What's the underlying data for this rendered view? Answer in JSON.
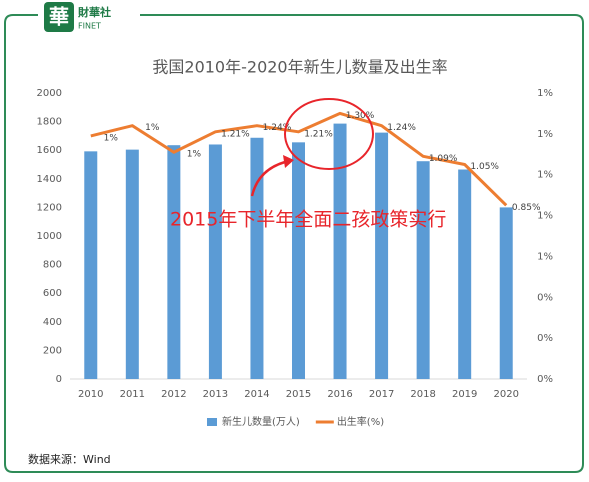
{
  "logo": {
    "icon": "華",
    "name": "財華社",
    "sub": "FINET"
  },
  "chart_data": {
    "type": "combo",
    "title": "我国2010年-2020年新生儿数量及出生率",
    "categories": [
      "2010",
      "2011",
      "2012",
      "2013",
      "2014",
      "2015",
      "2016",
      "2017",
      "2018",
      "2019",
      "2020"
    ],
    "series": [
      {
        "name": "新生儿数量(万人)",
        "type": "bar",
        "color": "#5b9bd5",
        "values": [
          1592,
          1604,
          1635,
          1640,
          1687,
          1655,
          1786,
          1723,
          1523,
          1465,
          1200
        ]
      },
      {
        "name": "出生率(%)",
        "type": "line",
        "axis": "y2",
        "color": "#ed7d31",
        "values": [
          1.19,
          1.24,
          1.11,
          1.21,
          1.24,
          1.21,
          1.3,
          1.24,
          1.09,
          1.05,
          0.85
        ],
        "value_labels": [
          "1%",
          "1%",
          "1%",
          "1.21%",
          "1.24%",
          "1.21%",
          "1.30%",
          "1.24%",
          "1.09%",
          "1.05%",
          "0.85%"
        ]
      }
    ],
    "ylim": [
      0,
      2000
    ],
    "yticks": [
      0,
      200,
      400,
      600,
      800,
      1000,
      1200,
      1400,
      1600,
      1800,
      2000
    ],
    "y2lim": [
      0,
      1.4
    ],
    "y2ticks": [
      {
        "value": 0,
        "label": "0%"
      },
      {
        "value": 0.2,
        "label": "0%"
      },
      {
        "value": 0.4,
        "label": "0%"
      },
      {
        "value": 0.6,
        "label": "1%"
      },
      {
        "value": 0.8,
        "label": "1%"
      },
      {
        "value": 1.0,
        "label": "1%"
      },
      {
        "value": 1.2,
        "label": "1%"
      },
      {
        "value": 1.4,
        "label": "1%"
      }
    ],
    "grid": false,
    "annotation": "2015年下半年全面二孩政策实行"
  },
  "source": "数据来源：Wind"
}
